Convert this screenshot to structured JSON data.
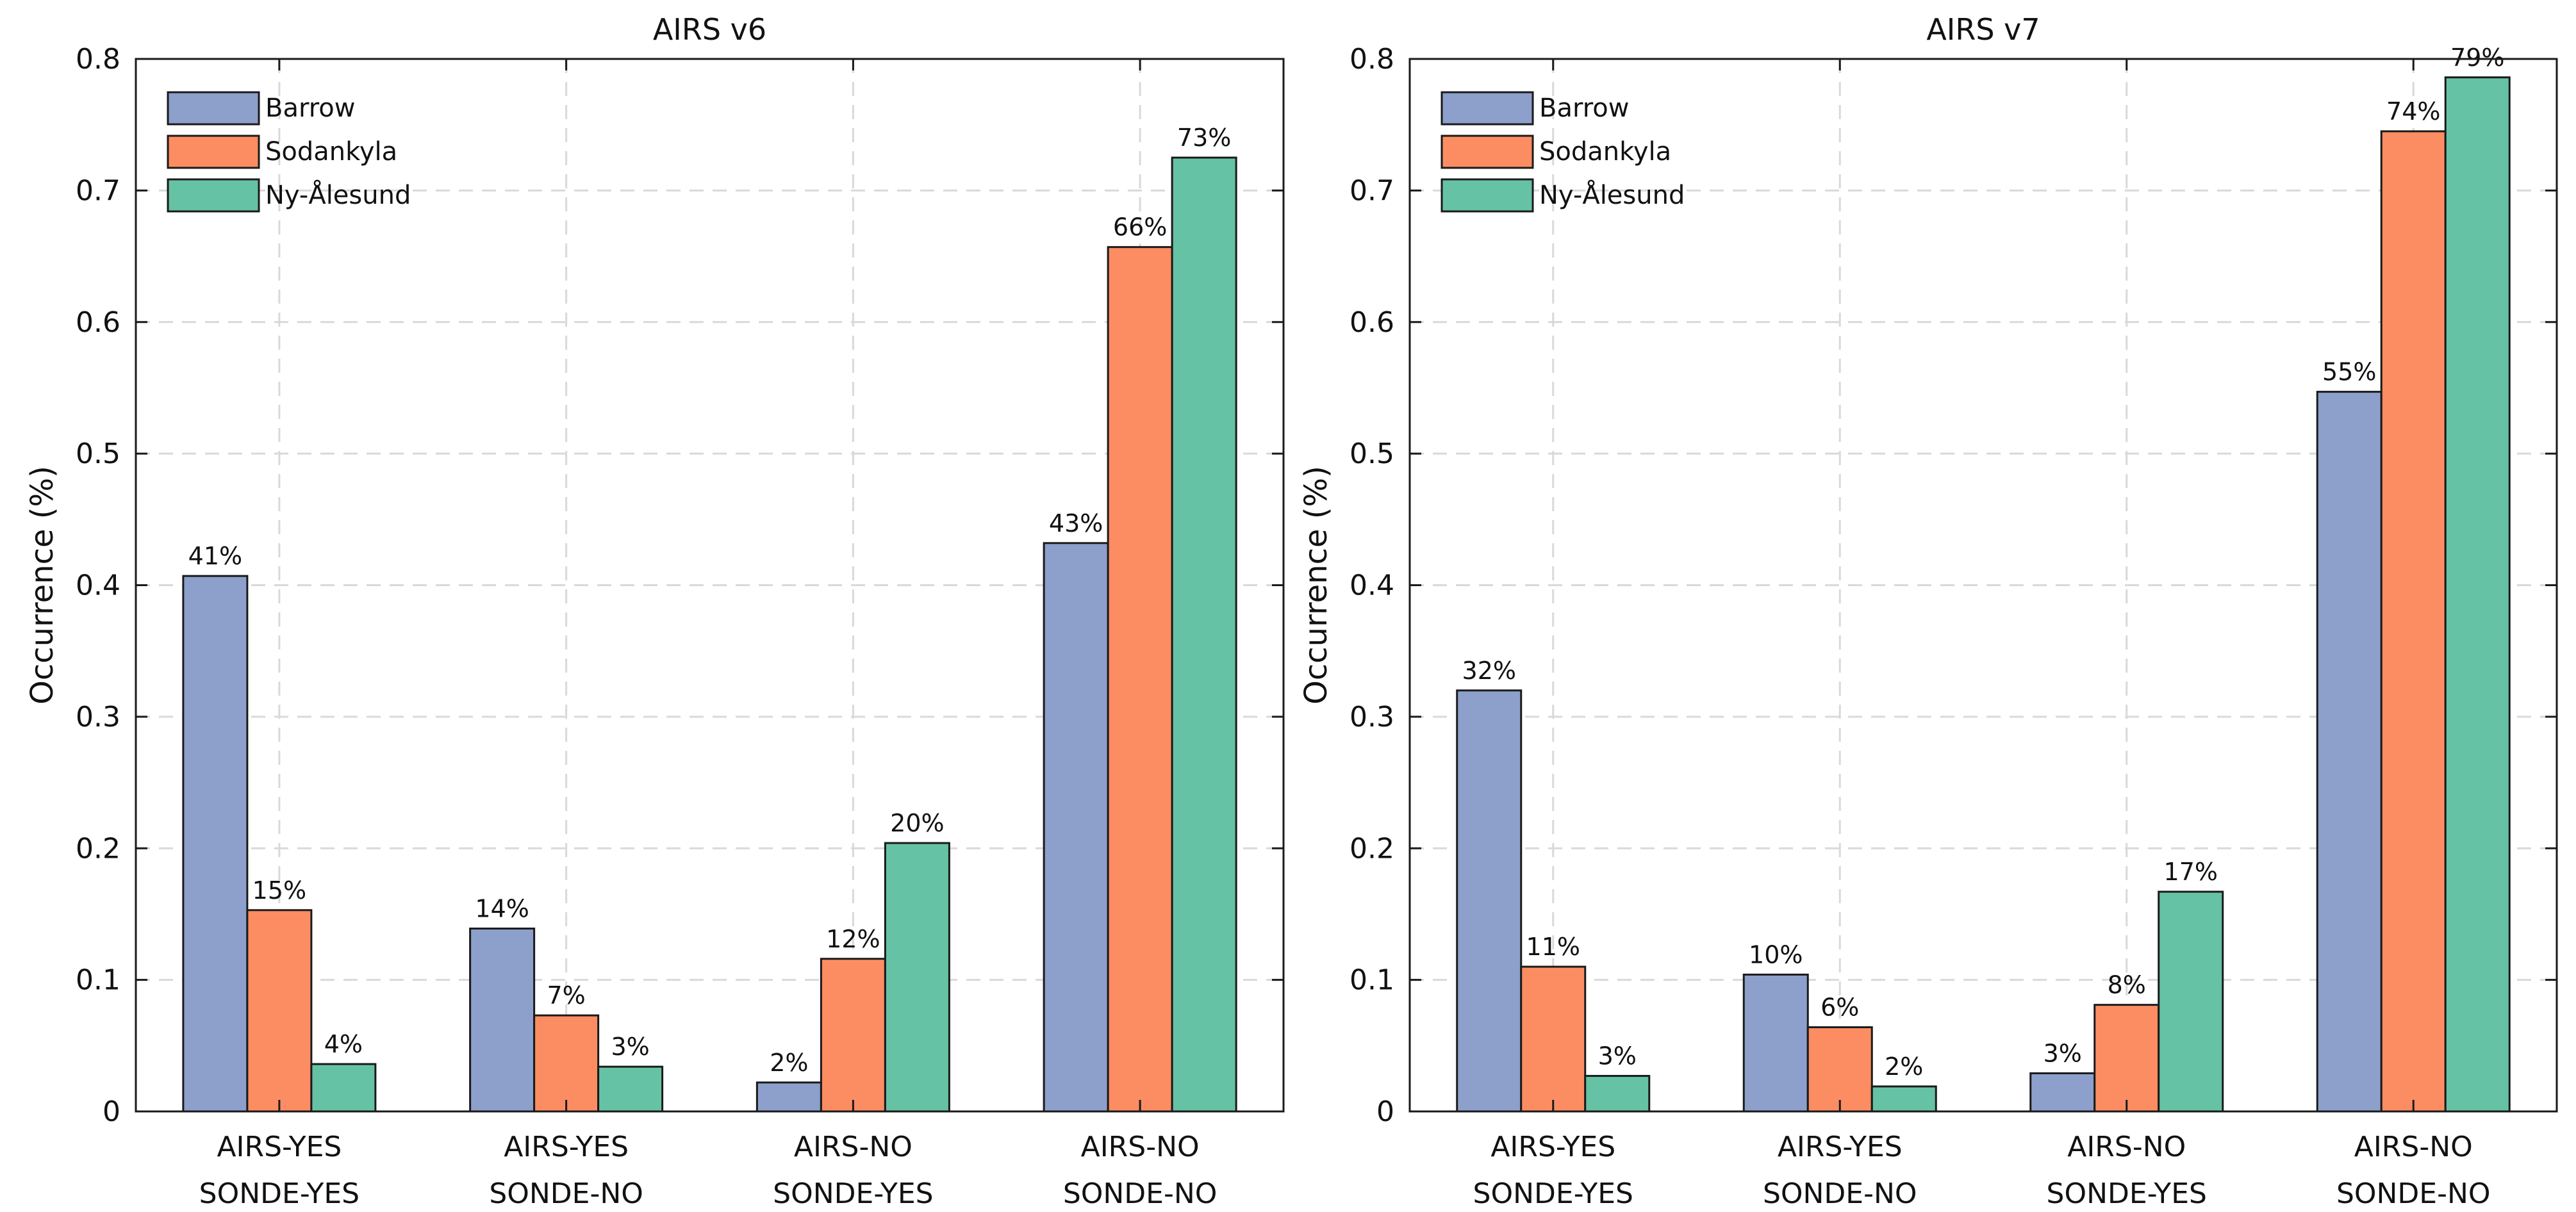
{
  "chart_data": [
    {
      "type": "bar",
      "title": "AIRS v6",
      "ylabel": "Occurrence (%)",
      "xlabel": "",
      "ylim": [
        0,
        0.8
      ],
      "yticks": [
        "0",
        "0.1",
        "0.2",
        "0.3",
        "0.4",
        "0.5",
        "0.6",
        "0.7",
        "0.8"
      ],
      "grid": true,
      "legend_position": "top-left",
      "categories": [
        [
          "AIRS-YES",
          "SONDE-YES"
        ],
        [
          "AIRS-YES",
          "SONDE-NO"
        ],
        [
          "AIRS-NO",
          "SONDE-YES"
        ],
        [
          "AIRS-NO",
          "SONDE-NO"
        ]
      ],
      "series": [
        {
          "name": "Barrow",
          "color": "#8da0cb",
          "values": [
            0.407,
            0.139,
            0.022,
            0.432
          ],
          "labels": [
            "41%",
            "14%",
            "2%",
            "43%"
          ]
        },
        {
          "name": "Sodankyla",
          "color": "#fc8d62",
          "values": [
            0.153,
            0.073,
            0.116,
            0.657
          ],
          "labels": [
            "15%",
            "7%",
            "12%",
            "66%"
          ]
        },
        {
          "name": "Ny-Ålesund",
          "color": "#66c2a5",
          "values": [
            0.036,
            0.034,
            0.204,
            0.725
          ],
          "labels": [
            "4%",
            "3%",
            "20%",
            "73%"
          ]
        }
      ]
    },
    {
      "type": "bar",
      "title": "AIRS v7",
      "ylabel": "Occurrence (%)",
      "xlabel": "",
      "ylim": [
        0,
        0.8
      ],
      "yticks": [
        "0",
        "0.1",
        "0.2",
        "0.3",
        "0.4",
        "0.5",
        "0.6",
        "0.7",
        "0.8"
      ],
      "grid": true,
      "legend_position": "top-left",
      "categories": [
        [
          "AIRS-YES",
          "SONDE-YES"
        ],
        [
          "AIRS-YES",
          "SONDE-NO"
        ],
        [
          "AIRS-NO",
          "SONDE-YES"
        ],
        [
          "AIRS-NO",
          "SONDE-NO"
        ]
      ],
      "series": [
        {
          "name": "Barrow",
          "color": "#8da0cb",
          "values": [
            0.32,
            0.104,
            0.029,
            0.547
          ],
          "labels": [
            "32%",
            "10%",
            "3%",
            "55%"
          ]
        },
        {
          "name": "Sodankyla",
          "color": "#fc8d62",
          "values": [
            0.11,
            0.064,
            0.081,
            0.745
          ],
          "labels": [
            "11%",
            "6%",
            "8%",
            "74%"
          ]
        },
        {
          "name": "Ny-Ålesund",
          "color": "#66c2a5",
          "values": [
            0.027,
            0.019,
            0.167,
            0.786
          ],
          "labels": [
            "3%",
            "2%",
            "17%",
            "79%"
          ]
        }
      ]
    }
  ]
}
